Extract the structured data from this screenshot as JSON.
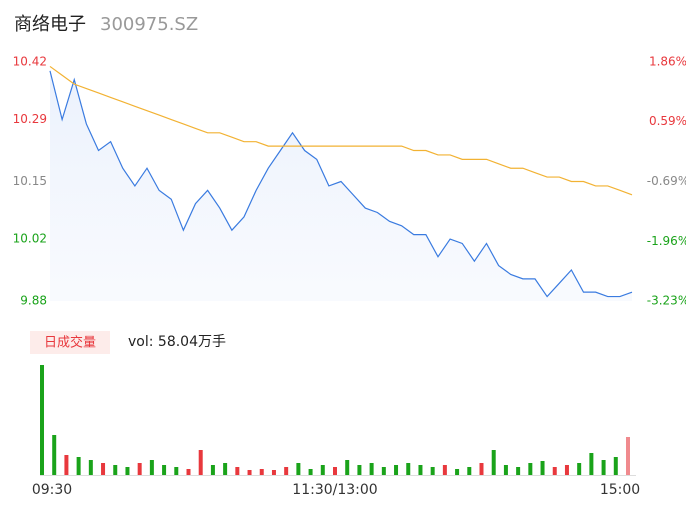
{
  "header": {
    "name": "商络电子",
    "code": "300975.SZ"
  },
  "chart_data": [
    {
      "type": "line",
      "x": [
        0,
        5,
        10,
        15,
        20,
        25,
        30,
        35,
        40,
        45,
        50,
        55,
        60,
        65,
        70,
        75,
        80,
        85,
        90,
        95,
        100,
        105,
        110,
        115,
        120,
        125,
        130,
        135,
        140,
        145,
        150,
        155,
        160,
        165,
        170,
        175,
        180,
        185,
        190,
        195,
        200,
        205,
        210,
        215,
        220,
        225,
        230,
        235,
        240
      ],
      "xlim": [
        0,
        240
      ],
      "ylim": [
        9.88,
        10.42
      ],
      "yticks": [
        10.42,
        10.29,
        10.15,
        10.02,
        9.88
      ],
      "ytick_colors": [
        "#e8383d",
        "#e8383d",
        "#888888",
        "#1aa31a",
        "#1aa31a"
      ],
      "y2lim": [
        -3.23,
        1.86
      ],
      "y2ticks": [
        {
          "value": 1.86,
          "label": "1.86%"
        },
        {
          "value": 0.59,
          "label": "0.59%"
        },
        {
          "value": -0.69,
          "label": "-0.69%"
        },
        {
          "value": -1.96,
          "label": "-1.96%"
        },
        {
          "value": -3.23,
          "label": "-3.23%"
        }
      ],
      "series": [
        {
          "color": "#3a7be0",
          "values": [
            10.4,
            10.29,
            10.38,
            10.28,
            10.22,
            10.24,
            10.18,
            10.14,
            10.18,
            10.13,
            10.11,
            10.04,
            10.1,
            10.13,
            10.09,
            10.04,
            10.07,
            10.13,
            10.18,
            10.22,
            10.26,
            10.22,
            10.2,
            10.14,
            10.15,
            10.12,
            10.09,
            10.08,
            10.06,
            10.05,
            10.03,
            10.03,
            9.98,
            10.02,
            10.01,
            9.97,
            10.01,
            9.96,
            9.94,
            9.93,
            9.93,
            9.89,
            9.92,
            9.95,
            9.9,
            9.9,
            9.89,
            9.89,
            9.9
          ]
        },
        {
          "color": "#f2b233",
          "values": [
            10.41,
            10.39,
            10.37,
            10.36,
            10.35,
            10.34,
            10.33,
            10.32,
            10.31,
            10.3,
            10.29,
            10.28,
            10.27,
            10.26,
            10.26,
            10.25,
            10.24,
            10.24,
            10.23,
            10.23,
            10.23,
            10.23,
            10.23,
            10.23,
            10.23,
            10.23,
            10.23,
            10.23,
            10.23,
            10.23,
            10.22,
            10.22,
            10.21,
            10.21,
            10.2,
            10.2,
            10.2,
            10.19,
            10.18,
            10.18,
            10.17,
            10.16,
            10.16,
            10.15,
            10.15,
            10.14,
            10.14,
            10.13,
            10.12
          ]
        }
      ]
    },
    {
      "type": "bar",
      "legend_label": "日成交量",
      "volume_text": "vol: 58.04万手",
      "x": [
        0,
        5,
        10,
        15,
        20,
        25,
        30,
        35,
        40,
        45,
        50,
        55,
        60,
        65,
        70,
        75,
        80,
        85,
        90,
        95,
        100,
        105,
        110,
        115,
        120,
        125,
        130,
        135,
        140,
        145,
        150,
        155,
        160,
        165,
        170,
        175,
        180,
        185,
        190,
        195,
        200,
        205,
        210,
        215,
        220,
        225,
        230,
        235,
        240
      ],
      "xlim": [
        0,
        240
      ],
      "xticks": [
        {
          "value": 0,
          "label": "09:30"
        },
        {
          "value": 120,
          "label": "11:30/13:00"
        },
        {
          "value": 240,
          "label": "15:00"
        }
      ],
      "ylim": [
        0,
        110
      ],
      "values": [
        110,
        40,
        20,
        18,
        15,
        12,
        10,
        8,
        12,
        15,
        10,
        8,
        6,
        25,
        10,
        12,
        8,
        5,
        6,
        5,
        8,
        12,
        6,
        10,
        8,
        15,
        10,
        12,
        8,
        10,
        12,
        10,
        8,
        10,
        6,
        8,
        12,
        25,
        10,
        8,
        12,
        14,
        8,
        10,
        12,
        22,
        15,
        18,
        38
      ],
      "colors": [
        "#1aa31a",
        "#1aa31a",
        "#e8383d",
        "#1aa31a",
        "#1aa31a",
        "#e8383d",
        "#1aa31a",
        "#1aa31a",
        "#e8383d",
        "#1aa31a",
        "#1aa31a",
        "#1aa31a",
        "#e8383d",
        "#e8383d",
        "#1aa31a",
        "#1aa31a",
        "#e8383d",
        "#e8383d",
        "#e8383d",
        "#e8383d",
        "#e8383d",
        "#1aa31a",
        "#1aa31a",
        "#1aa31a",
        "#e8383d",
        "#1aa31a",
        "#1aa31a",
        "#1aa31a",
        "#1aa31a",
        "#1aa31a",
        "#1aa31a",
        "#1aa31a",
        "#1aa31a",
        "#e8383d",
        "#1aa31a",
        "#1aa31a",
        "#e8383d",
        "#1aa31a",
        "#1aa31a",
        "#1aa31a",
        "#1aa31a",
        "#1aa31a",
        "#e8383d",
        "#e8383d",
        "#1aa31a",
        "#1aa31a",
        "#1aa31a",
        "#1aa31a",
        "#f08a8e"
      ]
    }
  ]
}
